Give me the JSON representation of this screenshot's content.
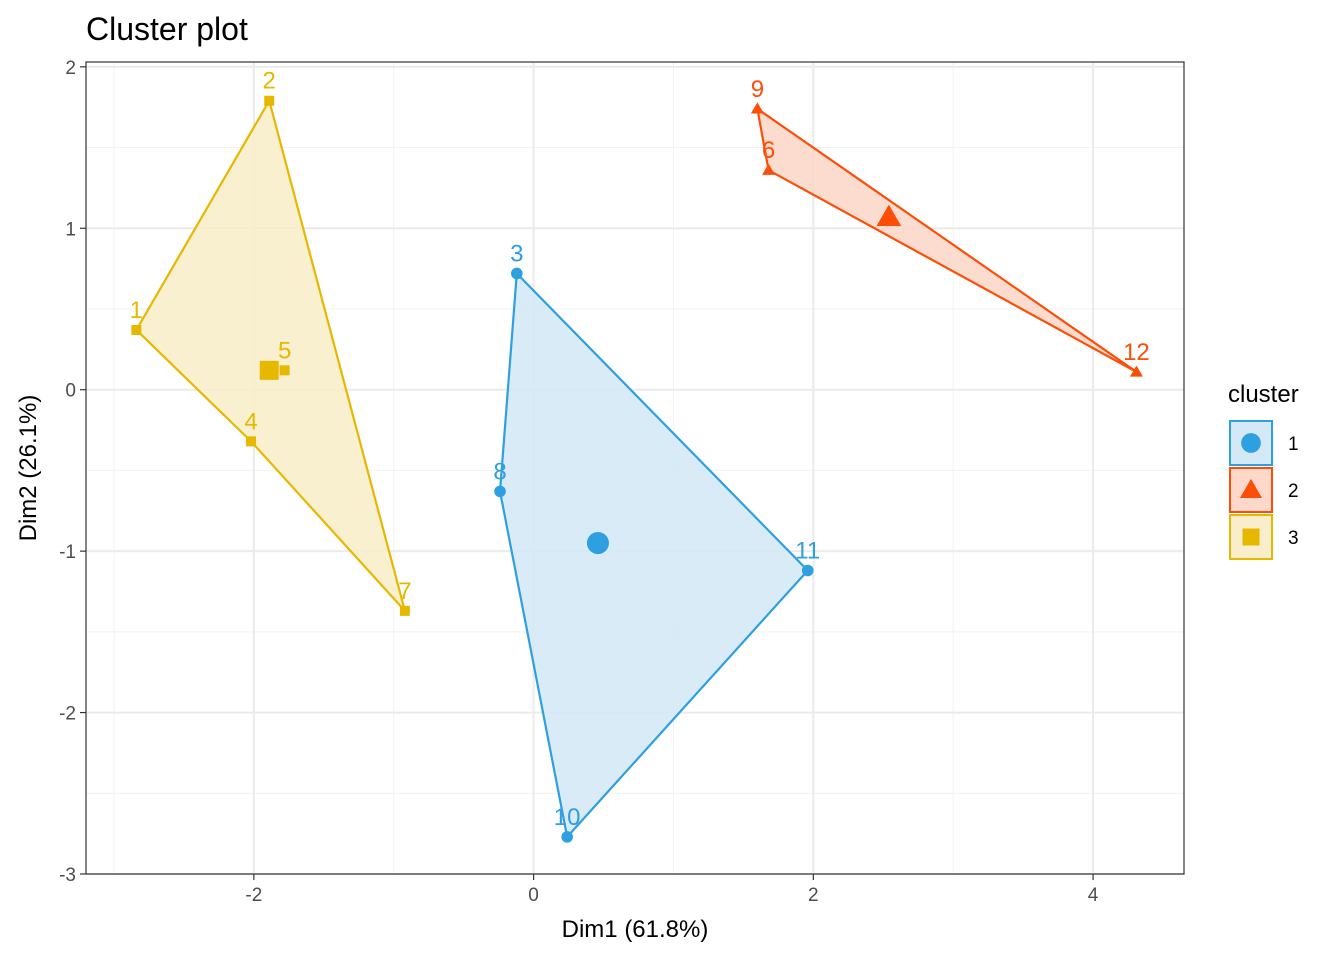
{
  "chart_data": {
    "type": "scatter",
    "title": "Cluster plot",
    "xlabel": "Dim1 (61.8%)",
    "ylabel": "Dim2 (26.1%)",
    "xlim": [
      -3.2,
      4.65
    ],
    "ylim": [
      -3.0,
      2.03
    ],
    "x_ticks": [
      -2,
      0,
      2,
      4
    ],
    "x_tick_labels": [
      "-2",
      "0",
      "2",
      "4"
    ],
    "y_ticks": [
      -3,
      -2,
      -1,
      0,
      1,
      2
    ],
    "y_tick_labels": [
      "-3",
      "-2",
      "-1",
      "0",
      "1",
      "2"
    ],
    "grid": true,
    "legend": {
      "title": "cluster",
      "position": "right",
      "entries": [
        {
          "label": "1",
          "shape": "circle",
          "color": "#2e9fdf"
        },
        {
          "label": "2",
          "shape": "triangle",
          "color": "#fc4e07"
        },
        {
          "label": "3",
          "shape": "square",
          "color": "#e7b800"
        }
      ]
    },
    "clusters": [
      {
        "name": "1",
        "shape": "circle",
        "color": "#2e9fdf",
        "fill": "#d4e9f6",
        "center": {
          "x": 0.46,
          "y": -0.95
        },
        "hull": [
          "3",
          "11",
          "10",
          "8"
        ],
        "points": [
          {
            "label": "3",
            "x": -0.12,
            "y": 0.72
          },
          {
            "label": "8",
            "x": -0.24,
            "y": -0.63
          },
          {
            "label": "10",
            "x": 0.24,
            "y": -2.77
          },
          {
            "label": "11",
            "x": 1.96,
            "y": -1.12
          }
        ]
      },
      {
        "name": "2",
        "shape": "triangle",
        "color": "#fc4e07",
        "fill": "#fdd8cb",
        "center": {
          "x": 2.54,
          "y": 1.07
        },
        "hull": [
          "9",
          "12",
          "6"
        ],
        "points": [
          {
            "label": "9",
            "x": 1.6,
            "y": 1.74
          },
          {
            "label": "6",
            "x": 1.68,
            "y": 1.36
          },
          {
            "label": "12",
            "x": 4.31,
            "y": 0.11
          }
        ]
      },
      {
        "name": "3",
        "shape": "square",
        "color": "#e7b800",
        "fill": "#f8eecb",
        "center": {
          "x": -1.89,
          "y": 0.12
        },
        "hull": [
          "1",
          "2",
          "7",
          "4"
        ],
        "points": [
          {
            "label": "2",
            "x": -1.89,
            "y": 1.79
          },
          {
            "label": "1",
            "x": -2.84,
            "y": 0.37
          },
          {
            "label": "5",
            "x": -1.78,
            "y": 0.12
          },
          {
            "label": "4",
            "x": -2.02,
            "y": -0.32
          },
          {
            "label": "7",
            "x": -0.92,
            "y": -1.37
          }
        ]
      }
    ]
  }
}
